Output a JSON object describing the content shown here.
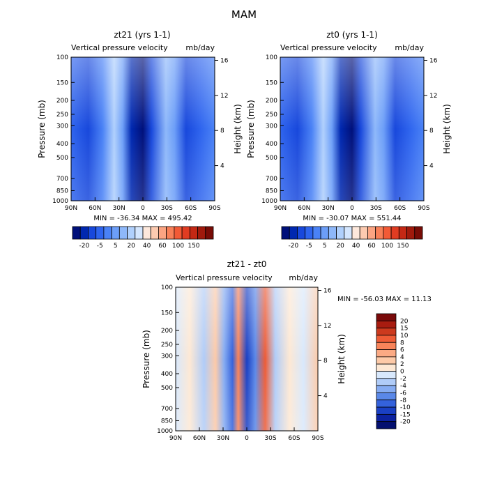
{
  "figure_title": "MAM",
  "chart_data": [
    {
      "type": "heatmap",
      "title": "zt21 (yrs 1-1)",
      "subtitle_left": "Vertical pressure velocity",
      "subtitle_right": "mb/day",
      "ylabel": "Pressure (mb)",
      "ylabel_right": "Height (km)",
      "x_ticks": [
        "90N",
        "60N",
        "30N",
        "0",
        "30S",
        "60S",
        "90S"
      ],
      "y_ticks": [
        "100",
        "150",
        "200",
        "250",
        "300",
        "400",
        "500",
        "700",
        "850",
        "1000"
      ],
      "y_ticks_right": [
        "16",
        "12",
        "8",
        "4"
      ],
      "stats": "MIN = -36.34   MAX = 495.42",
      "colorbar": {
        "tick_labels": [
          "-20",
          "-5",
          "5",
          "20",
          "40",
          "60",
          "100",
          "150"
        ],
        "colors": [
          "#00107a",
          "#0028b0",
          "#1848dc",
          "#2e64ee",
          "#4a82f6",
          "#6c9ef8",
          "#8eb8fa",
          "#b0d0fc",
          "#d4e6fe",
          "#fde8dc",
          "#fccab0",
          "#fba482",
          "#f88058",
          "#f25a36",
          "#e03c22",
          "#c42814",
          "#a01a0c",
          "#780c06"
        ]
      }
    },
    {
      "type": "heatmap",
      "title": "zt0 (yrs 1-1)",
      "subtitle_left": "Vertical pressure velocity",
      "subtitle_right": "mb/day",
      "ylabel": "Pressure (mb)",
      "ylabel_right": "Height (km)",
      "x_ticks": [
        "90N",
        "60N",
        "30N",
        "0",
        "30S",
        "60S",
        "90S"
      ],
      "y_ticks": [
        "100",
        "150",
        "200",
        "250",
        "300",
        "400",
        "500",
        "700",
        "850",
        "1000"
      ],
      "y_ticks_right": [
        "16",
        "12",
        "8",
        "4"
      ],
      "stats": "MIN = -30.07   MAX = 551.44",
      "colorbar": {
        "tick_labels": [
          "-20",
          "-5",
          "5",
          "20",
          "40",
          "60",
          "100",
          "150"
        ],
        "colors": [
          "#00107a",
          "#0028b0",
          "#1848dc",
          "#2e64ee",
          "#4a82f6",
          "#6c9ef8",
          "#8eb8fa",
          "#b0d0fc",
          "#d4e6fe",
          "#fde8dc",
          "#fccab0",
          "#fba482",
          "#f88058",
          "#f25a36",
          "#e03c22",
          "#c42814",
          "#a01a0c",
          "#780c06"
        ]
      }
    },
    {
      "type": "heatmap",
      "title": "zt21 - zt0",
      "subtitle_left": "Vertical pressure velocity",
      "subtitle_right": "mb/day",
      "ylabel": "Pressure (mb)",
      "ylabel_right": "Height (km)",
      "x_ticks": [
        "90N",
        "60N",
        "30N",
        "0",
        "30S",
        "60S",
        "90S"
      ],
      "y_ticks": [
        "100",
        "150",
        "200",
        "250",
        "300",
        "400",
        "500",
        "700",
        "850",
        "1000"
      ],
      "y_ticks_right": [
        "16",
        "12",
        "8",
        "4"
      ],
      "stats": "MIN = -56.03   MAX =  11.13",
      "colorbar": {
        "tick_labels": [
          "20",
          "15",
          "10",
          "8",
          "6",
          "4",
          "2",
          "0",
          "-2",
          "-4",
          "-6",
          "-8",
          "-10",
          "-15",
          "-20"
        ],
        "colors": [
          "#7a0a0a",
          "#a81c10",
          "#cc3a1e",
          "#ee5c36",
          "#f8845a",
          "#fbaa84",
          "#fdcaa8",
          "#fde8d4",
          "#d8e8fc",
          "#b0ccf8",
          "#86acf2",
          "#5a88e8",
          "#3462dc",
          "#1a40c4",
          "#0c22a0",
          "#041070"
        ]
      }
    }
  ]
}
